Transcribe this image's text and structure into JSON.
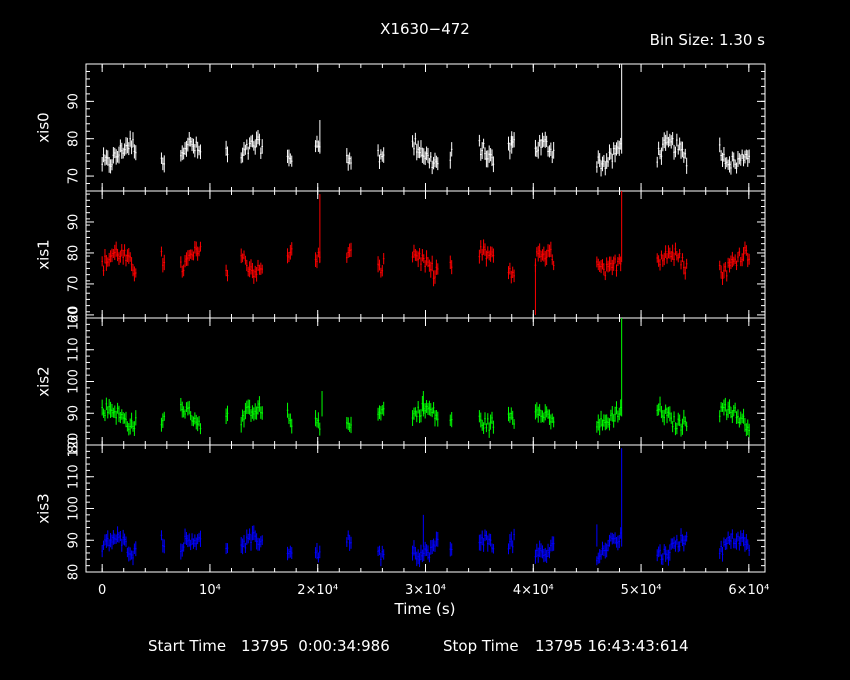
{
  "header": {
    "title": "X1630−472",
    "bin_size": "Bin Size: 1.30 s"
  },
  "footer": {
    "start_label": "Start Time",
    "start_value": "13795  0:00:34:986",
    "stop_label": "Stop Time",
    "stop_value": "13795 16:43:43:614"
  },
  "chart_data": {
    "type": "scatter",
    "title": "X1630−472",
    "xlabel": "Time (s)",
    "xlim": [
      -1500,
      61500
    ],
    "x_ticks": [
      0,
      10000,
      20000,
      30000,
      40000,
      50000,
      60000
    ],
    "x_tick_labels": [
      "0",
      "10⁴",
      "2×10⁴",
      "3×10⁴",
      "4×10⁴",
      "5×10⁴",
      "6×10⁴"
    ],
    "segments": [
      [
        0,
        3200
      ],
      [
        5500,
        5800
      ],
      [
        7300,
        9200
      ],
      [
        11500,
        11700
      ],
      [
        12900,
        14900
      ],
      [
        17200,
        17600
      ],
      [
        19800,
        20300
      ],
      [
        22700,
        23100
      ],
      [
        25600,
        26200
      ],
      [
        28800,
        31200
      ],
      [
        32300,
        32500
      ],
      [
        35000,
        36400
      ],
      [
        37700,
        38300
      ],
      [
        40200,
        41900
      ],
      [
        45900,
        48200
      ],
      [
        51500,
        54300
      ],
      [
        57300,
        60100
      ]
    ],
    "series": [
      {
        "name": "xis0",
        "color": "#ffffff",
        "ylim": [
          66,
          100
        ],
        "y_ticks": [
          70,
          80,
          90
        ],
        "mean": 76,
        "amplitude": 2.5,
        "errorbar": 1.8,
        "spikes": [
          {
            "x": 20200,
            "y": 85
          },
          {
            "x": 48200,
            "y": 100
          },
          {
            "x": 38000,
            "y": 82
          }
        ]
      },
      {
        "name": "xis1",
        "color": "#ff0000",
        "ylim": [
          59,
          100
        ],
        "y_ticks": [
          60,
          70,
          80,
          90
        ],
        "mean": 77,
        "amplitude": 3,
        "errorbar": 2,
        "spikes": [
          {
            "x": 20200,
            "y": 99
          },
          {
            "x": 48200,
            "y": 100
          },
          {
            "x": 40200,
            "y": 60
          }
        ]
      },
      {
        "name": "xis2",
        "color": "#00ff00",
        "ylim": [
          80,
          120
        ],
        "y_ticks": [
          80,
          90,
          100,
          110,
          120
        ],
        "y_tick_labels": [
          "80",
          "90",
          "100",
          "110",
          "120"
        ],
        "mean": 89,
        "amplitude": 2.5,
        "errorbar": 2,
        "spikes": [
          {
            "x": 48200,
            "y": 120
          },
          {
            "x": 20400,
            "y": 97
          },
          {
            "x": 29800,
            "y": 97
          }
        ]
      },
      {
        "name": "xis3",
        "color": "#0000ff",
        "ylim": [
          80,
          120
        ],
        "y_ticks": [
          80,
          90,
          100,
          110,
          120
        ],
        "y_tick_labels": [
          "80",
          "90",
          "100",
          "110",
          "120"
        ],
        "mean": 88,
        "amplitude": 2.5,
        "errorbar": 2,
        "spikes": [
          {
            "x": 48200,
            "y": 119
          },
          {
            "x": 29800,
            "y": 98
          },
          {
            "x": 45900,
            "y": 95
          }
        ]
      }
    ]
  }
}
